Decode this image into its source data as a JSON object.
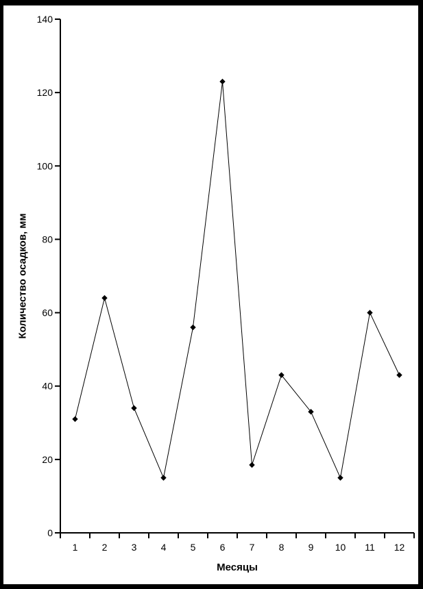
{
  "chart_data": {
    "type": "line",
    "title": "",
    "xlabel": "Месяцы",
    "ylabel": "Количество осадков, мм",
    "categories": [
      "1",
      "2",
      "3",
      "4",
      "5",
      "6",
      "7",
      "8",
      "9",
      "10",
      "11",
      "12"
    ],
    "values": [
      31,
      64,
      34,
      15,
      56,
      123,
      18.5,
      43,
      33,
      15,
      60,
      43
    ],
    "ylim": [
      0,
      140
    ],
    "yticks": [
      0,
      20,
      40,
      60,
      80,
      100,
      120,
      140
    ],
    "grid": false,
    "legend": false,
    "line_color": "#000000",
    "marker": "diamond",
    "marker_color": "#000000",
    "axis_color": "#000000",
    "background_color": "#ffffff",
    "frame_color": "#000000"
  }
}
